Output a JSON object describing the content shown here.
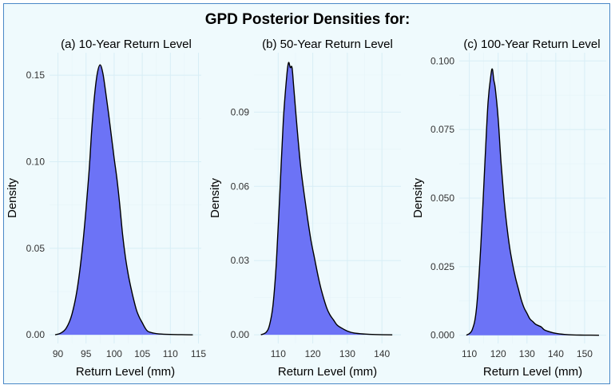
{
  "figure": {
    "title": "GPD Posterior Densities for:"
  },
  "colors": {
    "fill": "#6c73f6",
    "line": "#000000",
    "background": "#effafd",
    "border": "#4a88c7"
  },
  "chart_data": [
    {
      "type": "area",
      "title": "(a) 10-Year Return Level",
      "xlabel": "Return Level (mm)",
      "ylabel": "Density",
      "xlim": [
        88.5,
        115.5
      ],
      "ylim": [
        -0.005,
        0.163
      ],
      "xticks": [
        90,
        95,
        100,
        105,
        110,
        115
      ],
      "yticks": [
        0.0,
        0.05,
        0.1,
        0.15
      ],
      "yticklabels": [
        "0.00",
        "0.05",
        "0.10",
        "0.15"
      ],
      "x": [
        89.5,
        90.5,
        91.5,
        92.5,
        93.5,
        94.5,
        95.5,
        96.0,
        96.5,
        97.0,
        97.5,
        98.0,
        98.5,
        99.0,
        99.5,
        100.0,
        100.5,
        101.0,
        101.5,
        102.0,
        102.5,
        103.0,
        103.5,
        104.0,
        104.5,
        105.0,
        105.5,
        106.0,
        107.0,
        108.0,
        110.0,
        112.0,
        114.0
      ],
      "y": [
        0.0,
        0.001,
        0.004,
        0.012,
        0.028,
        0.055,
        0.093,
        0.118,
        0.138,
        0.151,
        0.156,
        0.151,
        0.14,
        0.128,
        0.115,
        0.102,
        0.09,
        0.075,
        0.058,
        0.045,
        0.035,
        0.027,
        0.02,
        0.014,
        0.01,
        0.007,
        0.004,
        0.002,
        0.001,
        0.0005,
        0.0002,
        0.0001,
        0.0
      ]
    },
    {
      "type": "area",
      "title": "(b) 50-Year Return Level",
      "xlabel": "Return Level (mm)",
      "ylabel": "Density",
      "xlim": [
        103.0,
        145.5
      ],
      "ylim": [
        -0.0035,
        0.114
      ],
      "xticks": [
        110,
        120,
        130,
        140
      ],
      "yticks": [
        0.0,
        0.03,
        0.06,
        0.09
      ],
      "yticklabels": [
        "0.00",
        "0.03",
        "0.06",
        "0.09"
      ],
      "x": [
        105.0,
        106.5,
        107.5,
        108.5,
        109.5,
        110.5,
        111.5,
        112.5,
        113.0,
        113.5,
        114.0,
        114.5,
        115.5,
        116.5,
        117.5,
        118.5,
        119.5,
        120.5,
        121.5,
        122.5,
        124.0,
        125.0,
        126.0,
        127.0,
        128.0,
        130.0,
        132.0,
        135.0,
        138.0,
        143.0
      ],
      "y": [
        0.0,
        0.001,
        0.004,
        0.012,
        0.03,
        0.058,
        0.087,
        0.105,
        0.11,
        0.108,
        0.108,
        0.1,
        0.083,
        0.068,
        0.057,
        0.047,
        0.038,
        0.031,
        0.024,
        0.018,
        0.011,
        0.008,
        0.006,
        0.004,
        0.003,
        0.0015,
        0.0007,
        0.0003,
        0.0001,
        0.0
      ]
    },
    {
      "type": "area",
      "title": "(c) 100-Year Return Level",
      "xlabel": "Return Level (mm)",
      "ylabel": "Density",
      "xlim": [
        106.5,
        157.5
      ],
      "ylim": [
        -0.003,
        0.103
      ],
      "xticks": [
        110,
        120,
        130,
        140,
        150
      ],
      "yticks": [
        0.0,
        0.025,
        0.05,
        0.075,
        0.1
      ],
      "yticklabels": [
        "0.000",
        "0.025",
        "0.050",
        "0.075",
        "0.100"
      ],
      "x": [
        109.0,
        111.0,
        112.5,
        114.0,
        115.5,
        116.5,
        117.5,
        118.0,
        118.5,
        119.0,
        120.0,
        121.0,
        122.0,
        123.0,
        124.0,
        125.0,
        126.0,
        127.0,
        128.0,
        129.0,
        130.0,
        131.0,
        132.0,
        133.0,
        134.0,
        135.0,
        136.0,
        138.0,
        140.0,
        143.0,
        146.0,
        150.0,
        155.0
      ],
      "y": [
        0.0,
        0.002,
        0.01,
        0.033,
        0.065,
        0.085,
        0.095,
        0.097,
        0.093,
        0.09,
        0.079,
        0.063,
        0.05,
        0.04,
        0.032,
        0.026,
        0.021,
        0.017,
        0.013,
        0.01,
        0.008,
        0.006,
        0.005,
        0.004,
        0.0035,
        0.003,
        0.002,
        0.0012,
        0.0007,
        0.0003,
        0.0001,
        5e-05,
        0.0
      ]
    }
  ]
}
